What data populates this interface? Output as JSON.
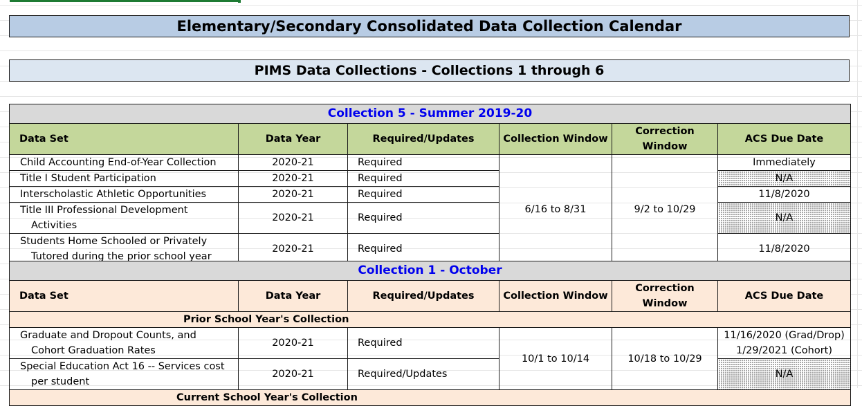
{
  "title": "Elementary/Secondary Consolidated Data Collection Calendar",
  "subtitle": "PIMS Data Collections - Collections 1 through 6",
  "headers": {
    "data_set": "Data Set",
    "data_year": "Data Year",
    "required_updates": "Required/Updates",
    "collection_window": "Collection Window",
    "correction_window": "Correction Window",
    "acs_due_date": "ACS Due Date"
  },
  "collection5": {
    "title": "Collection 5 - Summer 2019-20",
    "collection_window": "6/16 to 8/31",
    "correction_window": "9/2 to 10/29",
    "rows": [
      {
        "line1": "Child Accounting End-of-Year Collection",
        "line2": "",
        "year": "2020-21",
        "req": "Required",
        "due": "Immediately"
      },
      {
        "line1": "Title I Student Participation",
        "line2": "",
        "year": "2020-21",
        "req": "Required",
        "due": "N/A"
      },
      {
        "line1": "Interscholastic Athletic Opportunities",
        "line2": "",
        "year": "2020-21",
        "req": "Required",
        "due": "11/8/2020"
      },
      {
        "line1": "Title III Professional Development",
        "line2": "Activities",
        "year": "2020-21",
        "req": "Required",
        "due": "N/A"
      },
      {
        "line1": "Students Home Schooled or Privately",
        "line2": "Tutored during the prior school year",
        "year": "2020-21",
        "req": "Required",
        "due": "11/8/2020"
      }
    ]
  },
  "collection1": {
    "title": "Collection 1 - October",
    "prior_section": "Prior School Year's Collection",
    "current_section": "Current School Year's Collection",
    "collection_window": "10/1 to 10/14",
    "correction_window": "10/18 to 10/29",
    "rows": [
      {
        "line1": "Graduate and Dropout Counts, and",
        "line2": "Cohort Graduation Rates",
        "year": "2020-21",
        "req": "Required",
        "due1": "11/16/2020 (Grad/Drop)",
        "due2": "1/29/2021 (Cohort)"
      },
      {
        "line1": "Special Education Act 16 -- Services cost",
        "line2": "per student",
        "year": "2020-21",
        "req": "Required/Updates",
        "due": "N/A"
      }
    ]
  }
}
